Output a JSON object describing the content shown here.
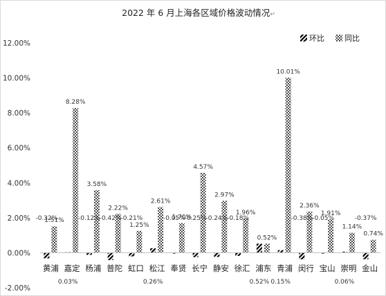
{
  "chart_data": {
    "type": "bar",
    "title": "2022 年 6 月上海各区域价格波动情况",
    "title_suffix": "↵",
    "categories": [
      "黄浦",
      "嘉定",
      "杨浦",
      "普陀",
      "虹口",
      "松江",
      "奉贤",
      "长宁",
      "静安",
      "徐汇",
      "浦东",
      "青浦",
      "闵行",
      "宝山",
      "崇明",
      "金山"
    ],
    "series": [
      {
        "name": "环比",
        "values": [
          -0.32,
          0.03,
          -0.12,
          -0.42,
          -0.21,
          0.26,
          -0.05,
          -0.25,
          -0.24,
          -0.18,
          0.52,
          0.15,
          -0.38,
          -0.05,
          0.06,
          -0.37
        ],
        "labels": [
          "-0.32%",
          "0.03%",
          "-0.12%",
          "-0.42%",
          "-0.21%",
          "0.26%",
          "-0.05%",
          "-0.25%",
          "-0.24%",
          "-0.18%",
          "0.52%",
          "0.15%",
          "-0.38%",
          "-0.05%",
          "0.06%",
          "-0.37%"
        ],
        "pattern": "diagonal-stripes",
        "color": "#000000"
      },
      {
        "name": "同比",
        "values": [
          1.51,
          8.28,
          3.58,
          2.22,
          1.25,
          2.61,
          1.7,
          4.57,
          2.97,
          1.96,
          0.52,
          10.01,
          2.36,
          1.91,
          1.14,
          0.74
        ],
        "labels": [
          "1.51%",
          "8.28%",
          "3.58%",
          "2.22%",
          "1.25%",
          "2.61%",
          "1.70%",
          "4.57%",
          "2.97%",
          "1.96%",
          "0.52%",
          "10.01%",
          "2.36%",
          "1.91%",
          "1.14%",
          "0.74%"
        ],
        "pattern": "checker",
        "color": "#555555"
      }
    ],
    "ylim": [
      -2,
      12
    ],
    "yticks": [
      -2,
      0,
      2,
      4,
      6,
      8,
      10,
      12
    ],
    "ytick_labels": [
      "-2.00%",
      "0.00%",
      "2.00%",
      "4.00%",
      "6.00%",
      "8.00%",
      "10.00%",
      "12.00%"
    ],
    "grid": false,
    "legend_position": "top-right",
    "xlabel": "",
    "ylabel": ""
  }
}
